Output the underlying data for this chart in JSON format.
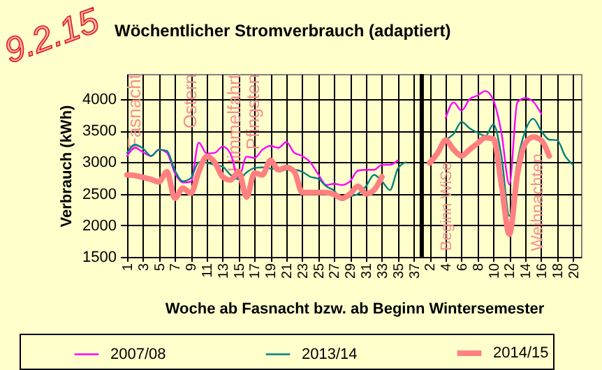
{
  "chart_data": {
    "type": "line",
    "title": "Wöchentlicher Stromverbrauch (adaptiert)",
    "xlabel": "Woche ab Fasnacht bzw. ab Beginn Wintersemester",
    "ylabel": "Verbrauch (kWh)",
    "categories": [
      "1",
      null,
      "3",
      null,
      "5",
      null,
      "7",
      null,
      "9",
      null,
      "11",
      null,
      "13",
      null,
      "15",
      null,
      "17",
      null,
      "19",
      null,
      "21",
      null,
      "23",
      null,
      "25",
      null,
      "27",
      null,
      "29",
      null,
      "31",
      null,
      "33",
      null,
      "35",
      null,
      "37",
      null,
      "2",
      null,
      "4",
      null,
      "6",
      null,
      "8",
      null,
      "10",
      null,
      "12",
      null,
      "14",
      null,
      "16",
      null,
      "18",
      null,
      "20",
      null
    ],
    "series": [
      {
        "name": "2007/08",
        "color": "#ff00ff",
        "values": [
          3100,
          3230,
          3160,
          3100,
          3200,
          3150,
          2830,
          2680,
          2690,
          3310,
          3140,
          3150,
          3250,
          3130,
          2750,
          3090,
          3070,
          3200,
          3260,
          3230,
          3320,
          3150,
          3100,
          3000,
          2810,
          2640,
          2660,
          2640,
          2700,
          2870,
          2880,
          2880,
          2960,
          2960,
          3030,
          null,
          null,
          null,
          null,
          null,
          3700,
          3950,
          3820,
          4000,
          4060,
          4130,
          3980,
          3470,
          2650,
          3950,
          4020,
          3960,
          3770,
          null,
          null,
          null,
          null,
          null
        ]
      },
      {
        "name": "2013/14",
        "color": "#008080",
        "values": [
          3150,
          3280,
          3220,
          3100,
          3200,
          3180,
          2870,
          2700,
          2750,
          3000,
          2990,
          2960,
          2930,
          2800,
          2730,
          2840,
          2910,
          2920,
          2900,
          2890,
          2880,
          2880,
          2850,
          2770,
          2740,
          2620,
          2550,
          2400,
          2460,
          2500,
          2620,
          2800,
          2700,
          2560,
          2900,
          3000,
          null,
          null,
          2990,
          3200,
          3350,
          3450,
          3640,
          3540,
          3470,
          3420,
          3600,
          3100,
          2150,
          3000,
          3500,
          3690,
          3500,
          3360,
          3350,
          3100,
          2960,
          null
        ]
      },
      {
        "name": "2014/15",
        "color": "#ff8080",
        "values": [
          2800,
          2790,
          2760,
          2730,
          2690,
          2850,
          2430,
          2590,
          2510,
          2850,
          3090,
          3000,
          2770,
          2720,
          2850,
          2450,
          2830,
          2800,
          3030,
          2880,
          2920,
          2850,
          2520,
          2520,
          2520,
          2520,
          2490,
          2430,
          2500,
          2620,
          2500,
          2560,
          2770,
          null,
          null,
          null,
          null,
          null,
          2990,
          3150,
          3350,
          3200,
          3100,
          3200,
          3300,
          3390,
          3370,
          2650,
          1860,
          2800,
          3300,
          3400,
          3350,
          3100,
          null,
          null,
          null,
          null
        ]
      },
      {
        "type": "bar",
        "color": "#000000",
        "values": [
          null,
          null,
          null,
          null,
          null,
          null,
          null,
          null,
          null,
          null,
          null,
          null,
          null,
          null,
          null,
          null,
          null,
          null,
          null,
          null,
          null,
          null,
          null,
          null,
          null,
          null,
          null,
          null,
          null,
          null,
          null,
          null,
          null,
          null,
          null,
          null,
          null,
          4400,
          null,
          null,
          null,
          null,
          null,
          null,
          null,
          null,
          null,
          null,
          null,
          null,
          null,
          null,
          null,
          null,
          null,
          null,
          null,
          null
        ]
      }
    ],
    "ylim": [
      1500,
      4400
    ],
    "yticks": [
      1500,
      2000,
      2500,
      3000,
      3500,
      4000
    ],
    "grid": true,
    "legend": "bottom",
    "annotations": [
      "9.2.15",
      "Fasnacht",
      "Ostern",
      "Himmelfahrt",
      "Pfingsten",
      "Beginn WiSe",
      "Weihnachten"
    ]
  }
}
